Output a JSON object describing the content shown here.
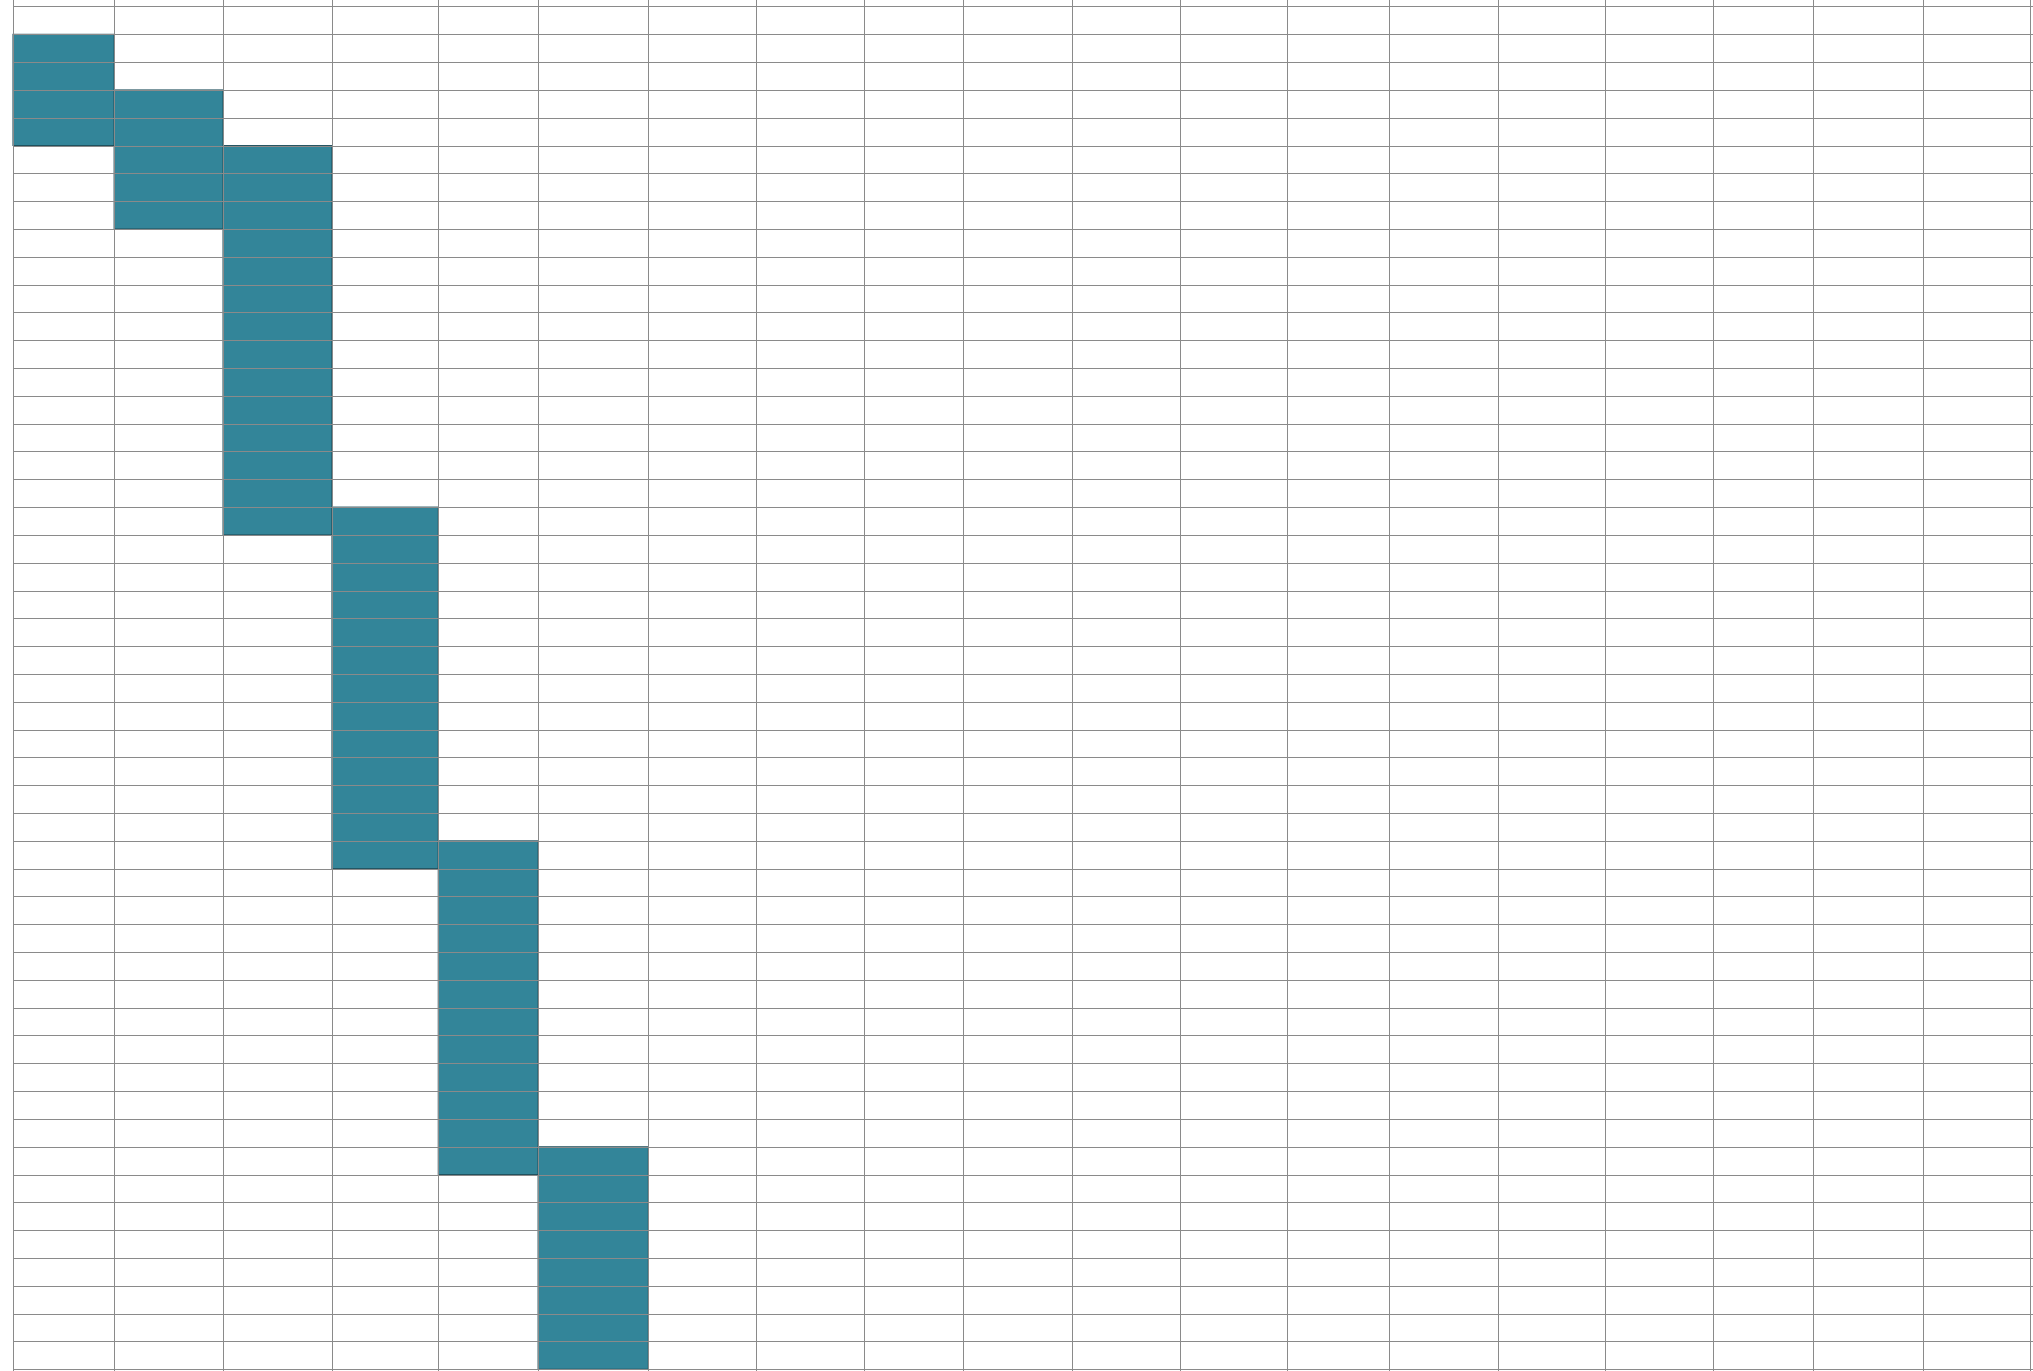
{
  "sheet": {
    "fill_color": "#338599",
    "border_color": "#1f4f5c",
    "blocks": [
      {
        "column": 0,
        "start_row": 1,
        "end_row": 4
      },
      {
        "column": 1,
        "start_row": 3,
        "end_row": 7
      },
      {
        "column": 2,
        "start_row": 5,
        "end_row": 18
      },
      {
        "column": 3,
        "start_row": 18,
        "end_row": 30
      },
      {
        "column": 4,
        "start_row": 30,
        "end_row": 41
      },
      {
        "column": 5,
        "start_row": 41,
        "end_row": 48
      }
    ]
  }
}
